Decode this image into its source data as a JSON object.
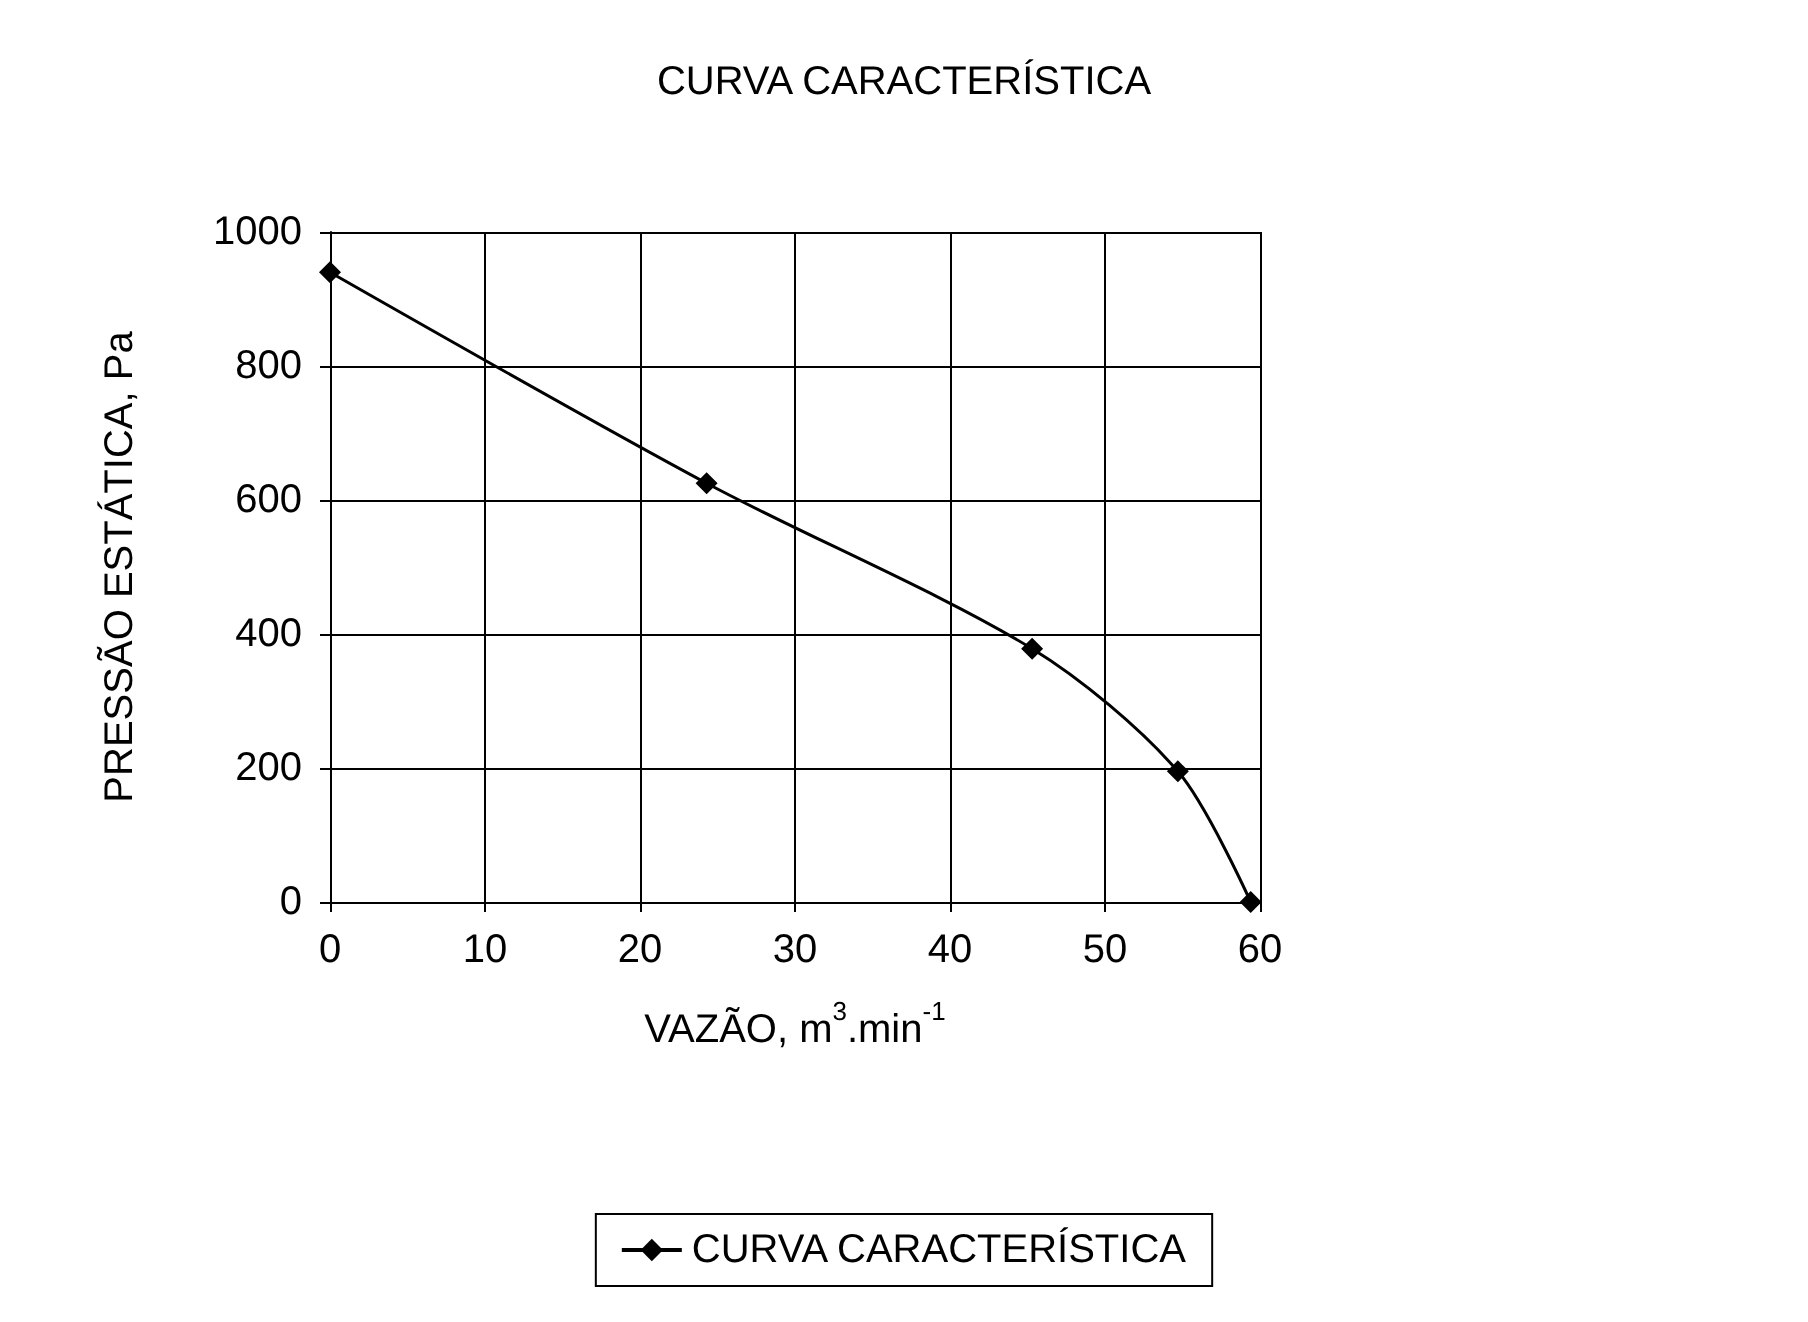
{
  "chart_data": {
    "type": "line",
    "title": "CURVA CARACTERÍSTICA",
    "xlabel": "VAZÃO, m$^{3}$.min$^{-1}$",
    "ylabel": "PRESSÃO ESTÁTICA, Pa",
    "x": [
      0,
      24.3,
      45.3,
      54.7,
      59.4
    ],
    "series": [
      {
        "name": "CURVA CARACTERÍSTICA",
        "color": "#000000",
        "values": [
          940,
          625,
          378,
          195,
          0
        ]
      }
    ],
    "xlim": [
      0,
      60
    ],
    "xticks": [
      0,
      10,
      20,
      30,
      40,
      50,
      60
    ],
    "ylim": [
      0,
      1000
    ],
    "yticks": [
      0,
      200,
      400,
      600,
      800,
      1000
    ],
    "grid": true,
    "legend": "bottom",
    "marker": "diamond",
    "line_style": "solid"
  }
}
